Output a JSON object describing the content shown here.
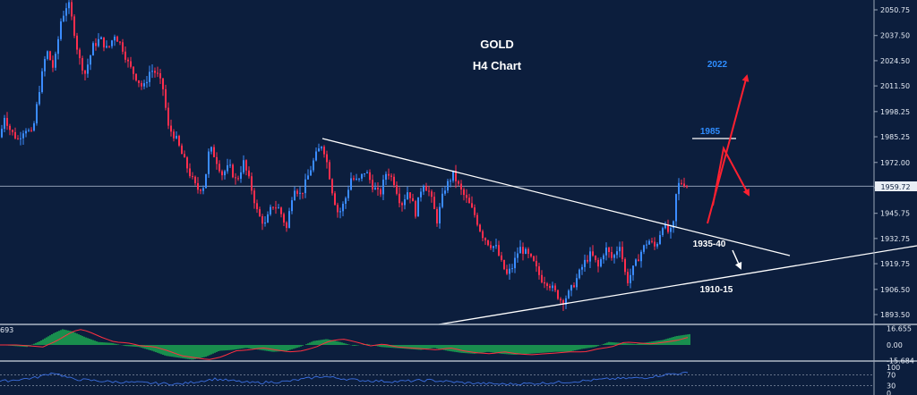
{
  "chart_data": {
    "type": "candlestick",
    "symbol": "GOLD",
    "title": "GOLD",
    "subtitle": "H4 Chart",
    "current_price": "1959.72",
    "y_ticks": [
      "2050.75",
      "2037.50",
      "2024.50",
      "2011.50",
      "1998.25",
      "1985.25",
      "1972.00",
      "1959.00",
      "1945.75",
      "1932.75",
      "1919.75",
      "1906.50",
      "1893.50"
    ],
    "ylim": [
      1888,
      2055
    ],
    "annotations": [
      {
        "text": "2022",
        "color": "#2f8dff"
      },
      {
        "text": "1985",
        "color": "#2f8dff"
      },
      {
        "text": "1935-40",
        "color": "#ffffff"
      },
      {
        "text": "1910-15",
        "color": "#ffffff"
      }
    ],
    "close_path": [
      [
        0,
        1985
      ],
      [
        5,
        1996
      ],
      [
        12,
        1988
      ],
      [
        20,
        1984
      ],
      [
        28,
        1990
      ],
      [
        36,
        1986
      ],
      [
        44,
        2010
      ],
      [
        52,
        2030
      ],
      [
        60,
        2020
      ],
      [
        68,
        2045
      ],
      [
        76,
        2055
      ],
      [
        82,
        2042
      ],
      [
        88,
        2026
      ],
      [
        95,
        2018
      ],
      [
        104,
        2032
      ],
      [
        112,
        2036
      ],
      [
        120,
        2030
      ],
      [
        128,
        2038
      ],
      [
        136,
        2032
      ],
      [
        144,
        2022
      ],
      [
        152,
        2016
      ],
      [
        160,
        2010
      ],
      [
        168,
        2020
      ],
      [
        175,
        2018
      ],
      [
        182,
        2010
      ],
      [
        188,
        1990
      ],
      [
        196,
        1985
      ],
      [
        204,
        1975
      ],
      [
        212,
        1966
      ],
      [
        220,
        1958
      ],
      [
        228,
        1960
      ],
      [
        234,
        1980
      ],
      [
        240,
        1975
      ],
      [
        248,
        1966
      ],
      [
        256,
        1970
      ],
      [
        264,
        1962
      ],
      [
        272,
        1972
      ],
      [
        280,
        1960
      ],
      [
        288,
        1945
      ],
      [
        296,
        1940
      ],
      [
        304,
        1950
      ],
      [
        312,
        1948
      ],
      [
        320,
        1938
      ],
      [
        328,
        1960
      ],
      [
        336,
        1955
      ],
      [
        344,
        1965
      ],
      [
        352,
        1975
      ],
      [
        360,
        1982
      ],
      [
        366,
        1970
      ],
      [
        372,
        1955
      ],
      [
        378,
        1945
      ],
      [
        385,
        1952
      ],
      [
        392,
        1964
      ],
      [
        400,
        1962
      ],
      [
        408,
        1968
      ],
      [
        416,
        1960
      ],
      [
        424,
        1955
      ],
      [
        432,
        1968
      ],
      [
        440,
        1962
      ],
      [
        448,
        1950
      ],
      [
        456,
        1958
      ],
      [
        464,
        1946
      ],
      [
        472,
        1962
      ],
      [
        480,
        1956
      ],
      [
        488,
        1942
      ],
      [
        496,
        1958
      ],
      [
        506,
        1966
      ],
      [
        514,
        1958
      ],
      [
        522,
        1952
      ],
      [
        530,
        1945
      ],
      [
        538,
        1935
      ],
      [
        546,
        1930
      ],
      [
        554,
        1928
      ],
      [
        560,
        1920
      ],
      [
        566,
        1914
      ],
      [
        572,
        1918
      ],
      [
        580,
        1928
      ],
      [
        588,
        1925
      ],
      [
        596,
        1920
      ],
      [
        604,
        1912
      ],
      [
        612,
        1910
      ],
      [
        620,
        1905
      ],
      [
        628,
        1900
      ],
      [
        636,
        1905
      ],
      [
        644,
        1912
      ],
      [
        652,
        1920
      ],
      [
        660,
        1925
      ],
      [
        668,
        1918
      ],
      [
        676,
        1928
      ],
      [
        684,
        1922
      ],
      [
        692,
        1930
      ],
      [
        700,
        1910
      ],
      [
        708,
        1918
      ],
      [
        716,
        1926
      ],
      [
        724,
        1932
      ],
      [
        732,
        1928
      ],
      [
        740,
        1940
      ],
      [
        748,
        1935
      ],
      [
        752,
        1940
      ],
      [
        756,
        1960
      ],
      [
        762,
        1962
      ],
      [
        768,
        1960
      ]
    ],
    "macd": {
      "label": "693",
      "y_ticks": [
        "16.655",
        "0.00",
        "-15.684"
      ],
      "hist_path": [
        [
          0,
          0
        ],
        [
          30,
          -2
        ],
        [
          45,
          4
        ],
        [
          60,
          12
        ],
        [
          70,
          16
        ],
        [
          80,
          14
        ],
        [
          95,
          8
        ],
        [
          110,
          3
        ],
        [
          125,
          2
        ],
        [
          140,
          -1
        ],
        [
          155,
          -2
        ],
        [
          170,
          -6
        ],
        [
          185,
          -11
        ],
        [
          200,
          -13
        ],
        [
          215,
          -15
        ],
        [
          230,
          -12
        ],
        [
          245,
          -6
        ],
        [
          260,
          -5
        ],
        [
          275,
          -3
        ],
        [
          290,
          -5
        ],
        [
          305,
          -7
        ],
        [
          320,
          -6
        ],
        [
          335,
          -2
        ],
        [
          350,
          4
        ],
        [
          365,
          6
        ],
        [
          380,
          3
        ],
        [
          395,
          -1
        ],
        [
          410,
          1
        ],
        [
          425,
          -2
        ],
        [
          440,
          -3
        ],
        [
          455,
          -4
        ],
        [
          470,
          -5
        ],
        [
          485,
          -3
        ],
        [
          500,
          -6
        ],
        [
          515,
          -8
        ],
        [
          530,
          -9
        ],
        [
          545,
          -7
        ],
        [
          560,
          -9
        ],
        [
          575,
          -10
        ],
        [
          590,
          -9
        ],
        [
          605,
          -8
        ],
        [
          620,
          -7
        ],
        [
          635,
          -7
        ],
        [
          650,
          -4
        ],
        [
          665,
          -2
        ],
        [
          680,
          3
        ],
        [
          695,
          2
        ],
        [
          710,
          1
        ],
        [
          725,
          3
        ],
        [
          740,
          5
        ],
        [
          755,
          9
        ],
        [
          770,
          11
        ]
      ]
    },
    "rsi": {
      "y_ticks": [
        "100",
        "70",
        "30",
        "0"
      ],
      "path": [
        [
          0,
          45
        ],
        [
          40,
          60
        ],
        [
          60,
          80
        ],
        [
          80,
          55
        ],
        [
          120,
          45
        ],
        [
          160,
          40
        ],
        [
          200,
          35
        ],
        [
          240,
          55
        ],
        [
          280,
          40
        ],
        [
          320,
          45
        ],
        [
          360,
          65
        ],
        [
          400,
          50
        ],
        [
          440,
          45
        ],
        [
          480,
          50
        ],
        [
          520,
          40
        ],
        [
          560,
          35
        ],
        [
          600,
          38
        ],
        [
          640,
          45
        ],
        [
          680,
          55
        ],
        [
          720,
          60
        ],
        [
          750,
          75
        ],
        [
          770,
          78
        ]
      ]
    }
  }
}
